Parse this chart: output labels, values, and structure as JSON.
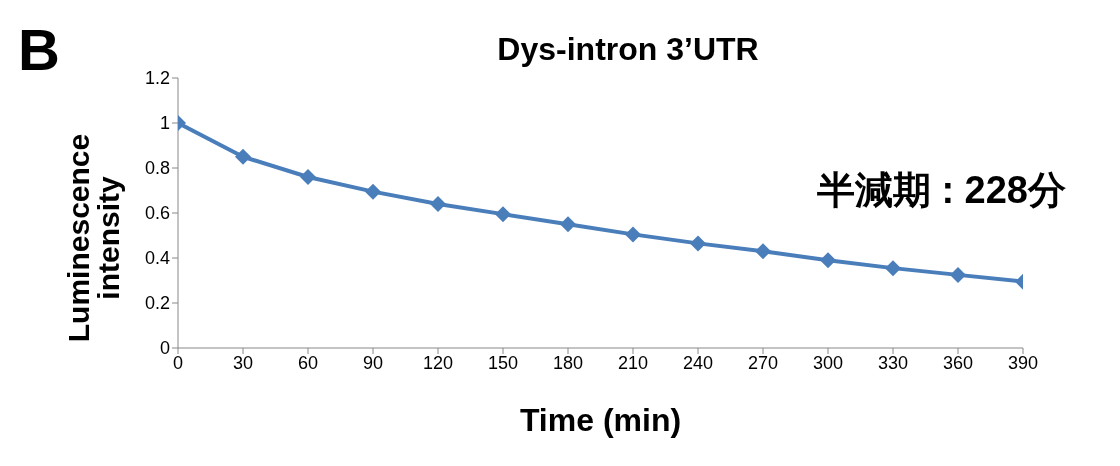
{
  "chart_data": {
    "type": "line",
    "title": "Dys-intron 3’UTR",
    "xlabel": "Time (min)",
    "ylabel": "Luminescence intensity",
    "annotations": [
      "B",
      "半減期 : 228分"
    ],
    "x": [
      0,
      30,
      60,
      90,
      120,
      150,
      180,
      210,
      240,
      270,
      300,
      330,
      360,
      390
    ],
    "series": [
      {
        "color": "#4a7ebb",
        "values": [
          1.0,
          0.85,
          0.76,
          0.695,
          0.64,
          0.595,
          0.55,
          0.505,
          0.465,
          0.43,
          0.39,
          0.355,
          0.325,
          0.295
        ]
      }
    ],
    "xlim": [
      0,
      390
    ],
    "xticks": [
      0,
      30,
      60,
      90,
      120,
      150,
      180,
      210,
      240,
      270,
      300,
      330,
      360,
      390
    ],
    "ylim": [
      0,
      1.2
    ],
    "yticks": [
      0,
      0.2,
      0.4,
      0.6,
      0.8,
      1,
      1.2
    ],
    "grid": false,
    "legend": false,
    "marker": "diamond",
    "line_style": "solid"
  }
}
